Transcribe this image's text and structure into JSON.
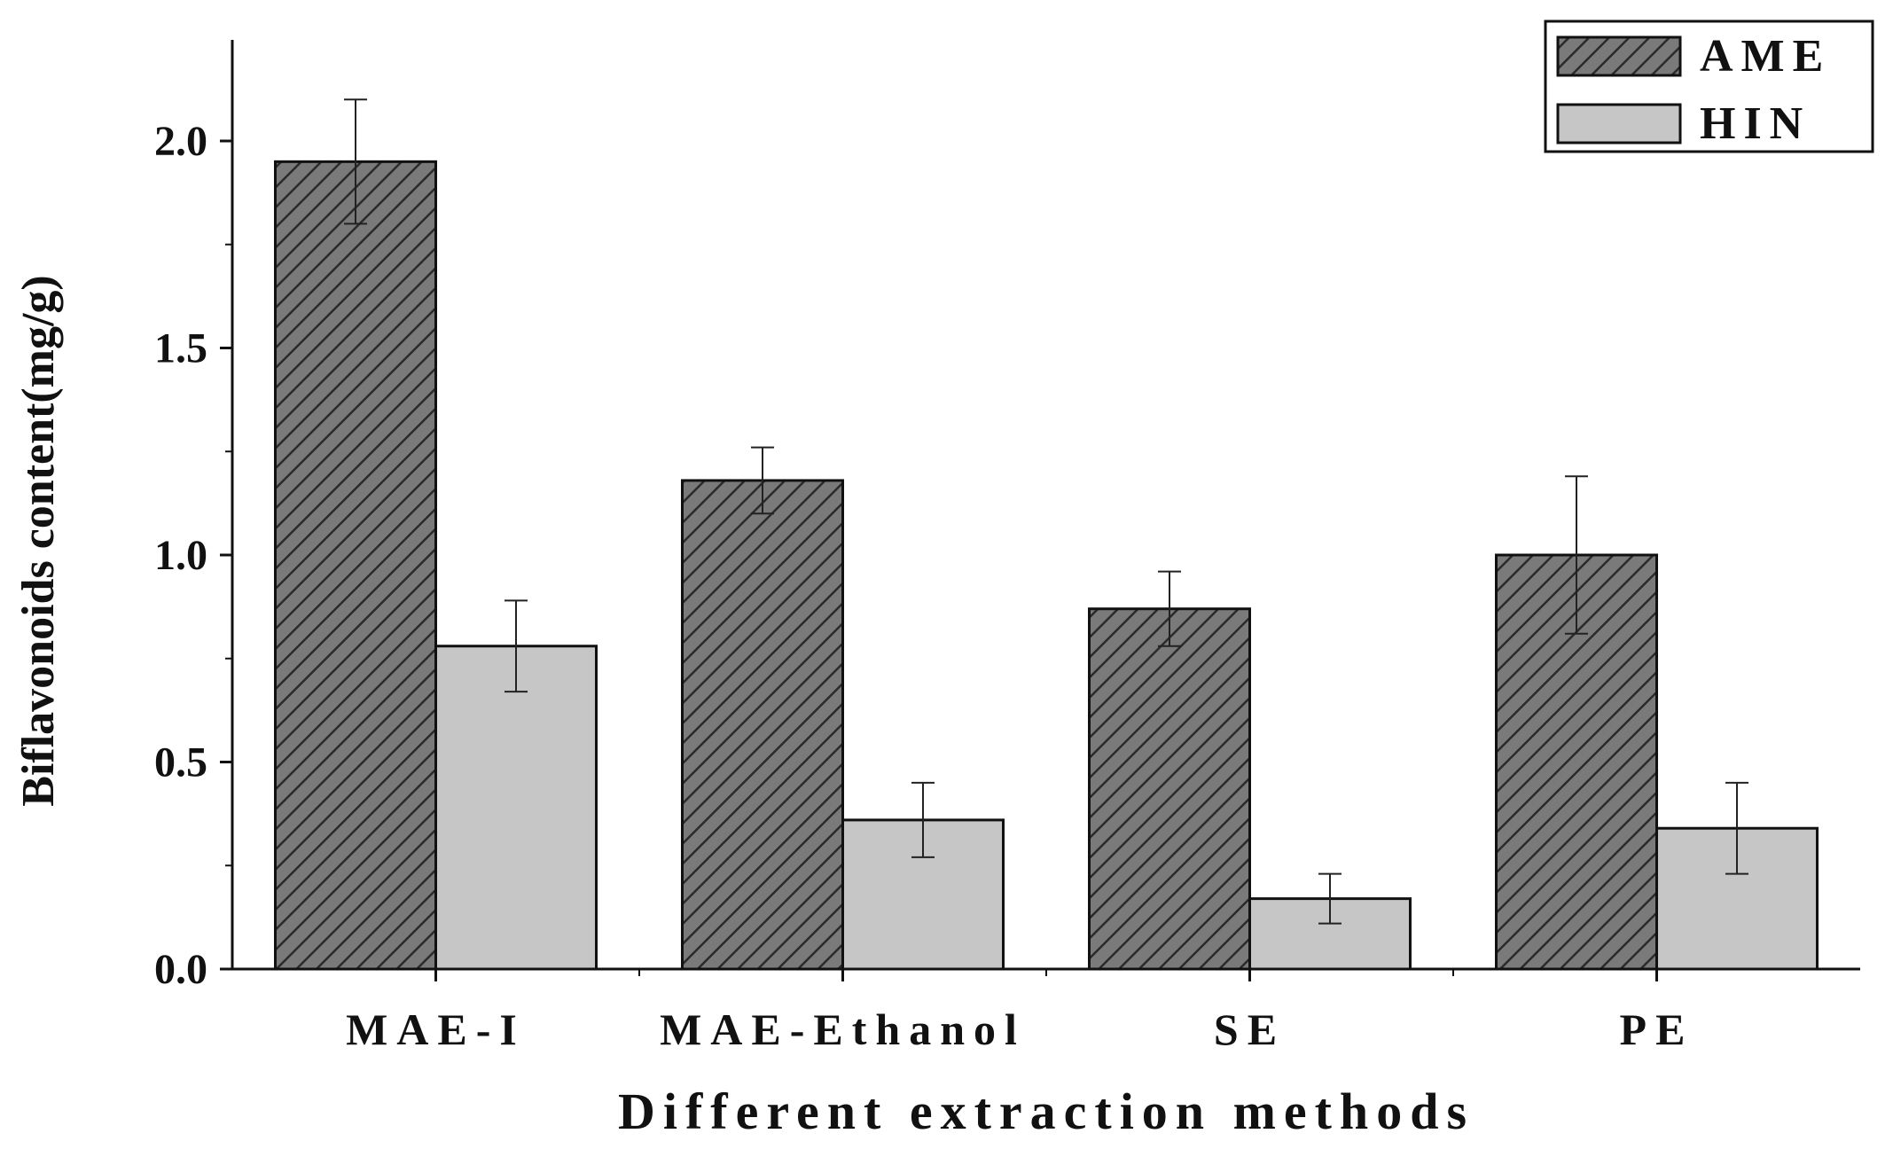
{
  "chart_data": {
    "type": "bar",
    "title": "",
    "xlabel": "Different extraction methods",
    "ylabel": "Biflavonoids content(mg/g)",
    "categories": [
      "MAE-I",
      "MAE-Ethanol",
      "SE",
      "PE"
    ],
    "ylim": [
      0,
      2.25
    ],
    "yticks": [
      "0.0",
      "0.5",
      "1.0",
      "1.5",
      "2.0"
    ],
    "grid": false,
    "legend_position": "top-right",
    "series": [
      {
        "name": "AME",
        "pattern": "hatched",
        "fill": "#7a7a7a",
        "hatch_color": "#2a2a2a",
        "values": [
          1.95,
          1.18,
          0.87,
          1.0
        ],
        "errors": [
          0.15,
          0.08,
          0.09,
          0.19
        ]
      },
      {
        "name": "HIN",
        "pattern": "solid",
        "fill": "#c6c6c6",
        "values": [
          0.78,
          0.36,
          0.17,
          0.34
        ],
        "errors": [
          0.11,
          0.09,
          0.06,
          0.11
        ]
      }
    ]
  }
}
